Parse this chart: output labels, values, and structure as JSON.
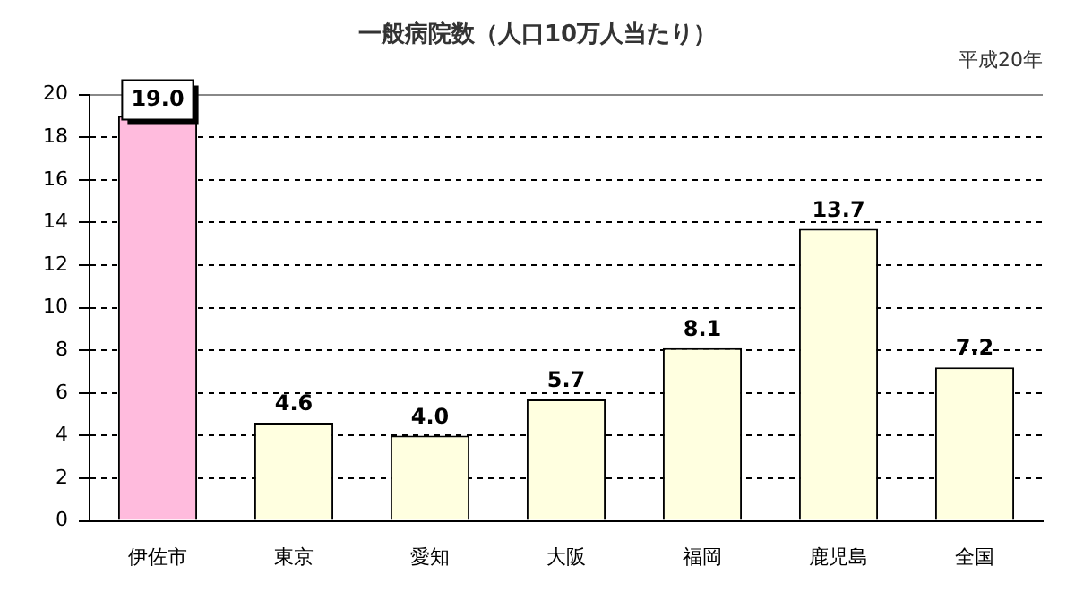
{
  "chart_data": {
    "type": "bar",
    "title": "一般病院数（人口10万人当たり）",
    "subtitle": "平成20年",
    "categories": [
      "伊佐市",
      "東京",
      "愛知",
      "大阪",
      "福岡",
      "鹿児島",
      "全国"
    ],
    "values": [
      19.0,
      4.6,
      4.0,
      5.7,
      8.1,
      13.7,
      7.2
    ],
    "colors": [
      "#ffbbdd",
      "#ffffe0",
      "#ffffe0",
      "#ffffe0",
      "#ffffe0",
      "#ffffe0",
      "#ffffe0"
    ],
    "value_labels": [
      "19.0",
      "4.6",
      "4.0",
      "5.7",
      "8.1",
      "13.7",
      "7.2"
    ],
    "ylim": [
      0,
      20
    ],
    "yticks": [
      0,
      2,
      4,
      6,
      8,
      10,
      12,
      14,
      16,
      18,
      20
    ],
    "grid": "y",
    "legend": false
  }
}
